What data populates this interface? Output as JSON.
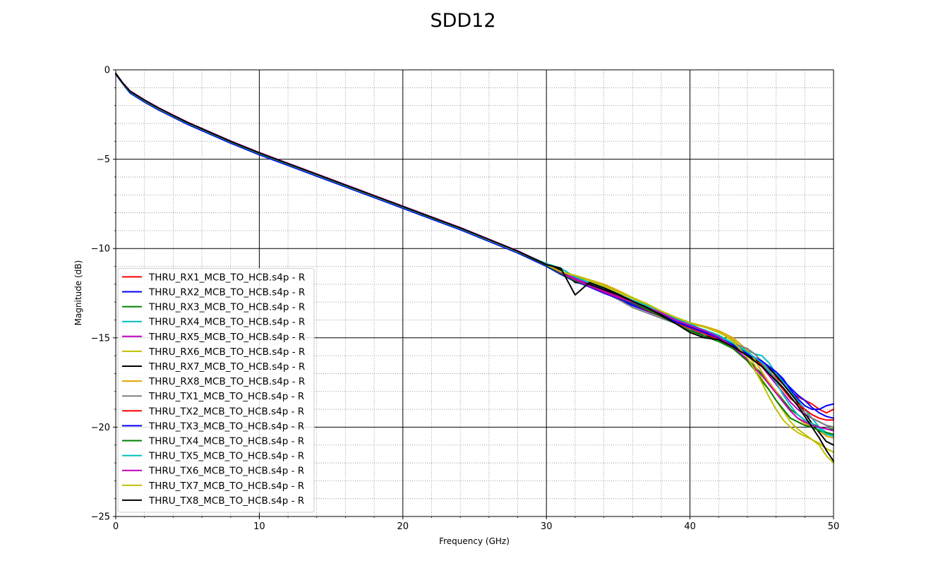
{
  "chart_data": {
    "type": "line",
    "title": "SDD12",
    "xlabel": "Frequency (GHz)",
    "ylabel": "Magnitude (dB)",
    "xlim": [
      0,
      50
    ],
    "ylim": [
      -25,
      0
    ],
    "x_ticks": [
      0,
      10,
      20,
      30,
      40,
      50
    ],
    "y_ticks": [
      0,
      -5,
      -10,
      -15,
      -20,
      -25
    ],
    "x_tick_labels": [
      "0",
      "10",
      "20",
      "30",
      "40",
      "50"
    ],
    "y_tick_labels": [
      "0",
      "−5",
      "−10",
      "−15",
      "−20",
      "−25"
    ],
    "grid": "major solid black, minor dotted gray",
    "legend_position": "lower-left",
    "x": [
      0,
      0.5,
      1,
      2,
      3,
      4,
      5,
      6,
      8,
      10,
      12,
      14,
      16,
      18,
      20,
      22,
      24,
      26,
      28,
      30,
      31,
      32,
      33,
      34,
      35,
      36,
      37,
      38,
      39,
      40,
      41,
      42,
      43,
      44,
      44.5,
      45,
      45.5,
      46,
      46.5,
      47,
      47.5,
      48,
      48.5,
      49,
      49.5,
      50
    ],
    "series": [
      {
        "name": "THRU_RX1_MCB_TO_HCB.s4p - R",
        "color": "#ff0000",
        "values": [
          -0.2,
          -0.75,
          -1.2,
          -1.7,
          -2.15,
          -2.55,
          -2.95,
          -3.3,
          -4.0,
          -4.65,
          -5.25,
          -5.85,
          -6.45,
          -7.05,
          -7.65,
          -8.25,
          -8.85,
          -9.5,
          -10.15,
          -10.9,
          -11.3,
          -11.7,
          -12.05,
          -12.4,
          -12.7,
          -13.0,
          -13.35,
          -13.7,
          -14.1,
          -14.35,
          -14.65,
          -14.95,
          -15.4,
          -15.9,
          -16.2,
          -16.5,
          -16.9,
          -17.2,
          -17.6,
          -18.0,
          -18.3,
          -18.5,
          -18.7,
          -19.0,
          -19.2,
          -19.0
        ]
      },
      {
        "name": "THRU_RX2_MCB_TO_HCB.s4p - R",
        "color": "#0000ff",
        "values": [
          -0.25,
          -0.8,
          -1.3,
          -1.8,
          -2.25,
          -2.65,
          -3.05,
          -3.4,
          -4.1,
          -4.75,
          -5.35,
          -5.95,
          -6.55,
          -7.15,
          -7.75,
          -8.35,
          -8.95,
          -9.6,
          -10.25,
          -11.0,
          -11.45,
          -11.85,
          -12.15,
          -12.5,
          -12.8,
          -13.2,
          -13.5,
          -13.8,
          -14.1,
          -14.4,
          -14.7,
          -14.9,
          -15.3,
          -15.8,
          -16.1,
          -16.3,
          -16.7,
          -17.0,
          -17.4,
          -17.8,
          -18.2,
          -18.5,
          -18.9,
          -19.2,
          -19.4,
          -19.5
        ]
      },
      {
        "name": "THRU_RX3_MCB_TO_HCB.s4p - R",
        "color": "#008000",
        "values": [
          -0.2,
          -0.78,
          -1.25,
          -1.75,
          -2.2,
          -2.6,
          -3.0,
          -3.35,
          -4.05,
          -4.7,
          -5.3,
          -5.9,
          -6.5,
          -7.1,
          -7.7,
          -8.3,
          -8.9,
          -9.55,
          -10.2,
          -10.95,
          -11.4,
          -11.8,
          -12.1,
          -12.45,
          -12.75,
          -13.1,
          -13.45,
          -13.8,
          -14.2,
          -14.6,
          -14.9,
          -15.2,
          -15.6,
          -16.2,
          -16.6,
          -17.0,
          -17.5,
          -18.0,
          -18.5,
          -19.0,
          -19.3,
          -19.6,
          -19.8,
          -20.0,
          -20.1,
          -20.1
        ]
      },
      {
        "name": "THRU_RX4_MCB_TO_HCB.s4p - R",
        "color": "#00bfbf",
        "values": [
          -0.2,
          -0.77,
          -1.22,
          -1.72,
          -2.17,
          -2.57,
          -2.97,
          -3.32,
          -4.02,
          -4.67,
          -5.27,
          -5.87,
          -6.47,
          -7.07,
          -7.67,
          -8.27,
          -8.87,
          -9.52,
          -10.17,
          -10.85,
          -11.1,
          -11.6,
          -11.95,
          -12.3,
          -12.6,
          -12.95,
          -13.3,
          -13.6,
          -13.95,
          -14.3,
          -14.55,
          -14.85,
          -15.3,
          -15.7,
          -15.9,
          -16.0,
          -16.4,
          -17.0,
          -17.5,
          -18.0,
          -18.5,
          -19.0,
          -19.5,
          -20.0,
          -20.3,
          -20.5
        ]
      },
      {
        "name": "THRU_RX5_MCB_TO_HCB.s4p - R",
        "color": "#bf00bf",
        "values": [
          -0.2,
          -0.74,
          -1.18,
          -1.68,
          -2.13,
          -2.53,
          -2.93,
          -3.28,
          -3.98,
          -4.63,
          -5.23,
          -5.83,
          -6.43,
          -7.03,
          -7.63,
          -8.23,
          -8.83,
          -9.48,
          -10.13,
          -10.88,
          -11.3,
          -11.68,
          -12.0,
          -12.35,
          -12.65,
          -12.9,
          -13.2,
          -13.6,
          -14.0,
          -14.3,
          -14.6,
          -14.9,
          -15.4,
          -15.9,
          -16.3,
          -16.6,
          -17.1,
          -17.6,
          -18.1,
          -18.6,
          -19.0,
          -19.3,
          -19.5,
          -19.7,
          -19.9,
          -20.0
        ]
      },
      {
        "name": "THRU_RX6_MCB_TO_HCB.s4p - R",
        "color": "#bfbf00",
        "values": [
          -0.2,
          -0.76,
          -1.21,
          -1.71,
          -2.16,
          -2.56,
          -2.96,
          -3.31,
          -4.01,
          -4.66,
          -5.26,
          -5.86,
          -6.46,
          -7.06,
          -7.66,
          -8.26,
          -8.86,
          -9.51,
          -10.16,
          -10.9,
          -11.3,
          -11.55,
          -11.8,
          -12.1,
          -12.45,
          -12.8,
          -13.15,
          -13.55,
          -13.9,
          -14.2,
          -14.4,
          -14.7,
          -15.1,
          -15.9,
          -16.5,
          -17.3,
          -17.9,
          -18.5,
          -19.1,
          -19.7,
          -20.1,
          -20.4,
          -20.7,
          -21.0,
          -21.6,
          -22.0
        ]
      },
      {
        "name": "THRU_RX7_MCB_TO_HCB.s4p - R",
        "color": "#000000",
        "values": [
          -0.2,
          -0.76,
          -1.21,
          -1.71,
          -2.16,
          -2.56,
          -2.96,
          -3.31,
          -4.01,
          -4.66,
          -5.26,
          -5.86,
          -6.46,
          -7.06,
          -7.66,
          -8.26,
          -8.86,
          -9.51,
          -10.16,
          -10.9,
          -11.2,
          -11.9,
          -12.0,
          -12.3,
          -12.6,
          -12.95,
          -13.3,
          -13.7,
          -14.1,
          -14.5,
          -14.9,
          -15.0,
          -15.4,
          -15.9,
          -16.2,
          -16.4,
          -16.7,
          -17.1,
          -17.6,
          -18.1,
          -18.6,
          -19.2,
          -19.8,
          -20.3,
          -20.8,
          -21.0
        ]
      },
      {
        "name": "THRU_RX8_MCB_TO_HCB.s4p - R",
        "color": "#e6a000",
        "values": [
          -0.2,
          -0.75,
          -1.2,
          -1.7,
          -2.15,
          -2.55,
          -2.95,
          -3.3,
          -4.0,
          -4.65,
          -5.25,
          -5.85,
          -6.45,
          -7.05,
          -7.65,
          -8.25,
          -8.85,
          -9.5,
          -10.15,
          -10.9,
          -11.3,
          -11.55,
          -11.75,
          -12.0,
          -12.35,
          -12.75,
          -13.1,
          -13.5,
          -13.85,
          -14.15,
          -14.35,
          -14.6,
          -15.0,
          -15.7,
          -16.2,
          -16.9,
          -17.5,
          -18.0,
          -18.6,
          -19.1,
          -19.5,
          -19.8,
          -20.0,
          -20.2,
          -20.5,
          -20.6
        ]
      },
      {
        "name": "THRU_TX1_MCB_TO_HCB.s4p - R",
        "color": "#808080",
        "values": [
          -0.2,
          -0.77,
          -1.23,
          -1.73,
          -2.18,
          -2.58,
          -2.98,
          -3.33,
          -4.03,
          -4.68,
          -5.28,
          -5.88,
          -6.48,
          -7.08,
          -7.68,
          -8.28,
          -8.88,
          -9.53,
          -10.18,
          -10.93,
          -11.35,
          -11.75,
          -12.1,
          -12.45,
          -12.85,
          -13.3,
          -13.6,
          -13.9,
          -14.2,
          -14.5,
          -14.8,
          -15.0,
          -15.3,
          -15.6,
          -15.9,
          -16.3,
          -16.8,
          -17.3,
          -17.8,
          -18.3,
          -18.8,
          -19.2,
          -19.5,
          -19.7,
          -19.9,
          -20.0
        ]
      },
      {
        "name": "THRU_TX2_MCB_TO_HCB.s4p - R",
        "color": "#ff0000",
        "values": [
          -0.2,
          -0.76,
          -1.22,
          -1.72,
          -2.17,
          -2.57,
          -2.97,
          -3.32,
          -4.02,
          -4.67,
          -5.27,
          -5.87,
          -6.47,
          -7.07,
          -7.67,
          -8.27,
          -8.87,
          -9.52,
          -10.17,
          -10.92,
          -11.35,
          -11.75,
          -12.1,
          -12.45,
          -12.75,
          -13.1,
          -13.45,
          -13.8,
          -14.15,
          -14.45,
          -14.75,
          -15.1,
          -15.5,
          -16.0,
          -16.3,
          -16.6,
          -17.0,
          -17.4,
          -17.9,
          -18.4,
          -18.7,
          -19.0,
          -19.3,
          -19.5,
          -19.6,
          -19.6
        ]
      },
      {
        "name": "THRU_TX3_MCB_TO_HCB.s4p - R",
        "color": "#0000ff",
        "values": [
          -0.22,
          -0.78,
          -1.27,
          -1.77,
          -2.22,
          -2.62,
          -3.02,
          -3.37,
          -4.07,
          -4.72,
          -5.32,
          -5.92,
          -6.52,
          -7.12,
          -7.72,
          -8.32,
          -8.92,
          -9.57,
          -10.22,
          -10.97,
          -11.4,
          -11.8,
          -12.15,
          -12.5,
          -12.8,
          -13.1,
          -13.4,
          -13.75,
          -14.1,
          -14.4,
          -14.7,
          -15.0,
          -15.4,
          -15.9,
          -16.1,
          -16.3,
          -16.6,
          -16.9,
          -17.3,
          -17.9,
          -18.4,
          -18.8,
          -19.0,
          -19.0,
          -18.8,
          -18.7
        ]
      },
      {
        "name": "THRU_TX4_MCB_TO_HCB.s4p - R",
        "color": "#008000",
        "values": [
          -0.2,
          -0.78,
          -1.24,
          -1.74,
          -2.19,
          -2.59,
          -2.99,
          -3.34,
          -4.04,
          -4.69,
          -5.29,
          -5.89,
          -6.49,
          -7.09,
          -7.69,
          -8.29,
          -8.89,
          -9.54,
          -10.19,
          -10.94,
          -11.4,
          -11.8,
          -12.1,
          -12.45,
          -12.75,
          -13.05,
          -13.4,
          -13.8,
          -14.2,
          -14.6,
          -14.9,
          -15.2,
          -15.6,
          -16.3,
          -16.8,
          -17.4,
          -17.9,
          -18.5,
          -19.0,
          -19.5,
          -19.7,
          -19.9,
          -20.0,
          -20.2,
          -20.3,
          -20.4
        ]
      },
      {
        "name": "THRU_TX5_MCB_TO_HCB.s4p - R",
        "color": "#00bfbf",
        "values": [
          -0.2,
          -0.77,
          -1.23,
          -1.73,
          -2.18,
          -2.58,
          -2.98,
          -3.33,
          -4.03,
          -4.68,
          -5.28,
          -5.88,
          -6.48,
          -7.08,
          -7.68,
          -8.28,
          -8.88,
          -9.53,
          -10.18,
          -10.85,
          -11.1,
          -11.6,
          -11.9,
          -12.2,
          -12.55,
          -12.9,
          -13.2,
          -13.6,
          -13.9,
          -14.2,
          -14.6,
          -14.9,
          -15.3,
          -15.8,
          -16.1,
          -16.4,
          -16.9,
          -17.5,
          -18.2,
          -18.8,
          -19.3,
          -19.6,
          -19.8,
          -20.1,
          -20.4,
          -20.5
        ]
      },
      {
        "name": "THRU_TX6_MCB_TO_HCB.s4p - R",
        "color": "#bf00bf",
        "values": [
          -0.2,
          -0.75,
          -1.19,
          -1.69,
          -2.14,
          -2.54,
          -2.94,
          -3.29,
          -3.99,
          -4.64,
          -5.24,
          -5.84,
          -6.44,
          -7.04,
          -7.64,
          -8.24,
          -8.84,
          -9.49,
          -10.14,
          -10.89,
          -11.35,
          -11.75,
          -12.1,
          -12.45,
          -12.75,
          -13.0,
          -13.3,
          -13.6,
          -14.0,
          -14.3,
          -14.6,
          -14.95,
          -15.5,
          -16.2,
          -16.7,
          -17.1,
          -17.6,
          -18.1,
          -18.6,
          -19.1,
          -19.5,
          -19.7,
          -19.9,
          -20.0,
          -20.1,
          -20.2
        ]
      },
      {
        "name": "THRU_TX7_MCB_TO_HCB.s4p - R",
        "color": "#bfbf00",
        "values": [
          -0.2,
          -0.76,
          -1.21,
          -1.71,
          -2.16,
          -2.56,
          -2.96,
          -3.31,
          -4.01,
          -4.66,
          -5.26,
          -5.86,
          -6.46,
          -7.06,
          -7.66,
          -8.26,
          -8.86,
          -9.51,
          -10.16,
          -10.9,
          -11.3,
          -11.5,
          -11.75,
          -12.05,
          -12.4,
          -12.75,
          -13.1,
          -13.5,
          -13.85,
          -14.15,
          -14.4,
          -14.65,
          -15.2,
          -16.1,
          -16.8,
          -17.5,
          -18.3,
          -19.0,
          -19.6,
          -20.0,
          -20.3,
          -20.5,
          -20.7,
          -20.9,
          -21.2,
          -21.4
        ]
      },
      {
        "name": "THRU_TX8_MCB_TO_HCB.s4p - R",
        "color": "#000000",
        "values": [
          -0.2,
          -0.75,
          -1.2,
          -1.7,
          -2.15,
          -2.55,
          -2.95,
          -3.3,
          -4.0,
          -4.65,
          -5.25,
          -5.85,
          -6.45,
          -7.05,
          -7.65,
          -8.25,
          -8.85,
          -9.5,
          -10.15,
          -10.9,
          -11.1,
          -12.6,
          -11.9,
          -12.2,
          -12.55,
          -12.95,
          -13.3,
          -13.75,
          -14.2,
          -14.7,
          -15.0,
          -15.1,
          -15.5,
          -16.0,
          -16.3,
          -16.6,
          -17.0,
          -17.4,
          -17.8,
          -18.3,
          -18.8,
          -19.4,
          -20.0,
          -20.6,
          -21.3,
          -21.9
        ]
      }
    ]
  }
}
